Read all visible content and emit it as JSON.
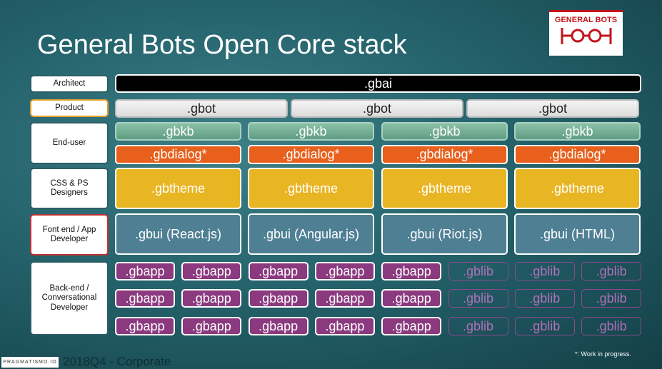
{
  "title": "General Bots Open Core stack",
  "logo": "GENERAL BOTS",
  "rows": [
    {
      "label": "Architect",
      "cells": [
        ".gbai"
      ]
    },
    {
      "label": "Product",
      "cells": [
        ".gbot",
        ".gbot",
        ".gbot"
      ]
    },
    {
      "label": "End-user",
      "cells": [
        ".gbkb",
        ".gbkb",
        ".gbkb",
        ".gbkb"
      ],
      "cells2": [
        ".gbdialog*",
        ".gbdialog*",
        ".gbdialog*",
        ".gbdialog*"
      ]
    },
    {
      "label": "CSS & PS Designers",
      "cells": [
        ".gbtheme",
        ".gbtheme",
        ".gbtheme",
        ".gbtheme"
      ]
    },
    {
      "label": "Font end / App Developer",
      "cells": [
        ".gbui (React.js)",
        ".gbui (Angular.js)",
        ".gbui (Riot.js)",
        ".gbui (HTML)"
      ]
    },
    {
      "label": "Back-end / Conversational Developer",
      "grid": [
        [
          ".gbapp",
          ".gbapp",
          ".gbapp",
          ".gbapp",
          ".gbapp",
          ".gblib",
          ".gblib",
          ".gblib"
        ],
        [
          ".gbapp",
          ".gbapp",
          ".gbapp",
          ".gbapp",
          ".gbapp",
          ".gblib",
          ".gblib",
          ".gblib"
        ],
        [
          ".gbapp",
          ".gbapp",
          ".gbapp",
          ".gbapp",
          ".gbapp",
          ".gblib",
          ".gblib",
          ".gblib"
        ]
      ]
    }
  ],
  "footer": {
    "brand": "PRAGMATISMO.IO",
    "period": "2018Q4 - Corporate",
    "note": "*: Work in progress."
  }
}
